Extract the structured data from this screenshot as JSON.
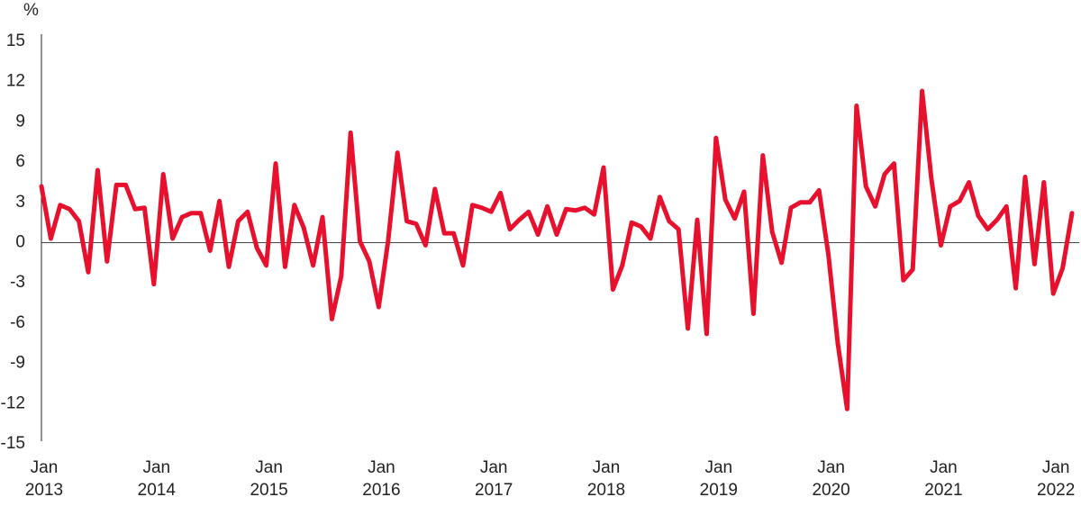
{
  "chart_data": {
    "type": "line",
    "y_label": "%",
    "x": [
      "2013-01",
      "2013-02",
      "2013-03",
      "2013-04",
      "2013-05",
      "2013-06",
      "2013-07",
      "2013-08",
      "2013-09",
      "2013-10",
      "2013-11",
      "2013-12",
      "2014-01",
      "2014-02",
      "2014-03",
      "2014-04",
      "2014-05",
      "2014-06",
      "2014-07",
      "2014-08",
      "2014-09",
      "2014-10",
      "2014-11",
      "2014-12",
      "2015-01",
      "2015-02",
      "2015-03",
      "2015-04",
      "2015-05",
      "2015-06",
      "2015-07",
      "2015-08",
      "2015-09",
      "2015-10",
      "2015-11",
      "2015-12",
      "2016-01",
      "2016-02",
      "2016-03",
      "2016-04",
      "2016-05",
      "2016-06",
      "2016-07",
      "2016-08",
      "2016-09",
      "2016-10",
      "2016-11",
      "2016-12",
      "2017-01",
      "2017-02",
      "2017-03",
      "2017-04",
      "2017-05",
      "2017-06",
      "2017-07",
      "2017-08",
      "2017-09",
      "2017-10",
      "2017-11",
      "2017-12",
      "2018-01",
      "2018-02",
      "2018-03",
      "2018-04",
      "2018-05",
      "2018-06",
      "2018-07",
      "2018-08",
      "2018-09",
      "2018-10",
      "2018-11",
      "2018-12",
      "2019-01",
      "2019-02",
      "2019-03",
      "2019-04",
      "2019-05",
      "2019-06",
      "2019-07",
      "2019-08",
      "2019-09",
      "2019-10",
      "2019-11",
      "2019-12",
      "2020-01",
      "2020-02",
      "2020-03",
      "2020-04",
      "2020-05",
      "2020-06",
      "2020-07",
      "2020-08",
      "2020-09",
      "2020-10",
      "2020-11",
      "2020-12",
      "2021-01",
      "2021-02",
      "2021-03",
      "2021-04",
      "2021-05",
      "2021-06",
      "2021-07",
      "2021-08",
      "2021-09",
      "2021-10",
      "2021-11",
      "2021-12",
      "2022-01",
      "2022-02",
      "2022-03"
    ],
    "series": [
      {
        "color": "#e8112d",
        "values": [
          4.2,
          0.3,
          2.8,
          2.5,
          1.6,
          -2.2,
          5.4,
          -1.4,
          4.3,
          4.3,
          2.5,
          2.6,
          -3.1,
          5.1,
          0.3,
          1.9,
          2.2,
          2.2,
          -0.6,
          3.1,
          -1.8,
          1.6,
          2.3,
          -0.4,
          -1.7,
          5.9,
          -1.8,
          2.8,
          1.1,
          -1.7,
          1.9,
          -5.7,
          -2.5,
          8.2,
          0.1,
          -1.4,
          -4.8,
          0.1,
          6.7,
          1.6,
          1.4,
          -0.2,
          4.0,
          0.7,
          0.7,
          -1.7,
          2.8,
          2.6,
          2.3,
          3.7,
          1.0,
          1.7,
          2.3,
          0.6,
          2.7,
          0.6,
          2.5,
          2.4,
          2.6,
          2.1,
          5.6,
          -3.5,
          -1.7,
          1.5,
          1.2,
          0.3,
          3.4,
          1.6,
          1.0,
          -6.4,
          1.7,
          -6.8,
          7.8,
          3.2,
          1.8,
          3.8,
          -5.3,
          6.5,
          0.8,
          -1.5,
          2.6,
          3.0,
          3.0,
          3.9,
          -0.9,
          -7.5,
          -12.4,
          10.2,
          4.2,
          2.7,
          5.1,
          5.9,
          -2.8,
          -2.0,
          11.3,
          4.7,
          -0.2,
          2.7,
          3.1,
          4.5,
          2.0,
          1.0,
          1.7,
          2.7,
          -3.4,
          4.9,
          -1.6,
          4.5,
          -3.8,
          -1.9,
          2.2
        ]
      }
    ],
    "ylim": [
      -15,
      15
    ],
    "yticks": [
      -15,
      -12,
      -9,
      -6,
      -3,
      0,
      3,
      6,
      9,
      12,
      15
    ],
    "xticks": [
      {
        "value": "2013-01",
        "label": "Jan 2013"
      },
      {
        "value": "2014-01",
        "label": "Jan 2014"
      },
      {
        "value": "2015-01",
        "label": "Jan 2015"
      },
      {
        "value": "2016-01",
        "label": "Jan 2016"
      },
      {
        "value": "2017-01",
        "label": "Jan 2017"
      },
      {
        "value": "2018-01",
        "label": "Jan 2018"
      },
      {
        "value": "2019-01",
        "label": "Jan 2019"
      },
      {
        "value": "2020-01",
        "label": "Jan 2020"
      },
      {
        "value": "2021-01",
        "label": "Jan 2021"
      },
      {
        "value": "2022-01",
        "label": "Jan 2022"
      }
    ],
    "grid": false
  }
}
